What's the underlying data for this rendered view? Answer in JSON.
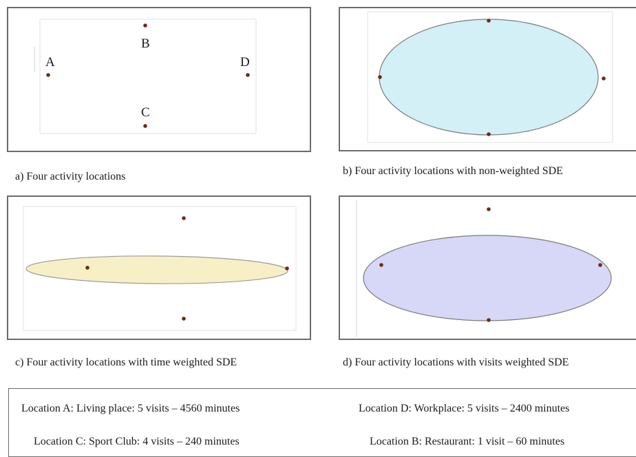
{
  "panels": {
    "a": {
      "caption": "a) Four activity locations",
      "labels": {
        "A": "A",
        "B": "B",
        "C": "C",
        "D": "D"
      }
    },
    "b": {
      "caption": "b) Four activity locations with non-weighted SDE"
    },
    "c": {
      "caption": "c) Four activity locations with time weighted SDE"
    },
    "d": {
      "caption": "d) Four activity locations with visits weighted SDE"
    }
  },
  "legend": {
    "location_a": "Location A: Living place: 5 visits – 4560 minutes",
    "location_c": "Location C: Sport Club: 4 visits – 240 minutes",
    "location_d": "Location D: Workplace: 5 visits – 2400 minutes",
    "location_b": "Location B: Restaurant: 1 visit – 60 minutes"
  },
  "colors": {
    "point": "#6e2b12",
    "ellipse_non_weighted": "#d3f0f6",
    "ellipse_time_weighted": "#f7f0c6",
    "ellipse_visits_weighted": "#d7d7f7",
    "ellipse_stroke": "#7a7a7a",
    "frame": "#6b6b6b"
  }
}
